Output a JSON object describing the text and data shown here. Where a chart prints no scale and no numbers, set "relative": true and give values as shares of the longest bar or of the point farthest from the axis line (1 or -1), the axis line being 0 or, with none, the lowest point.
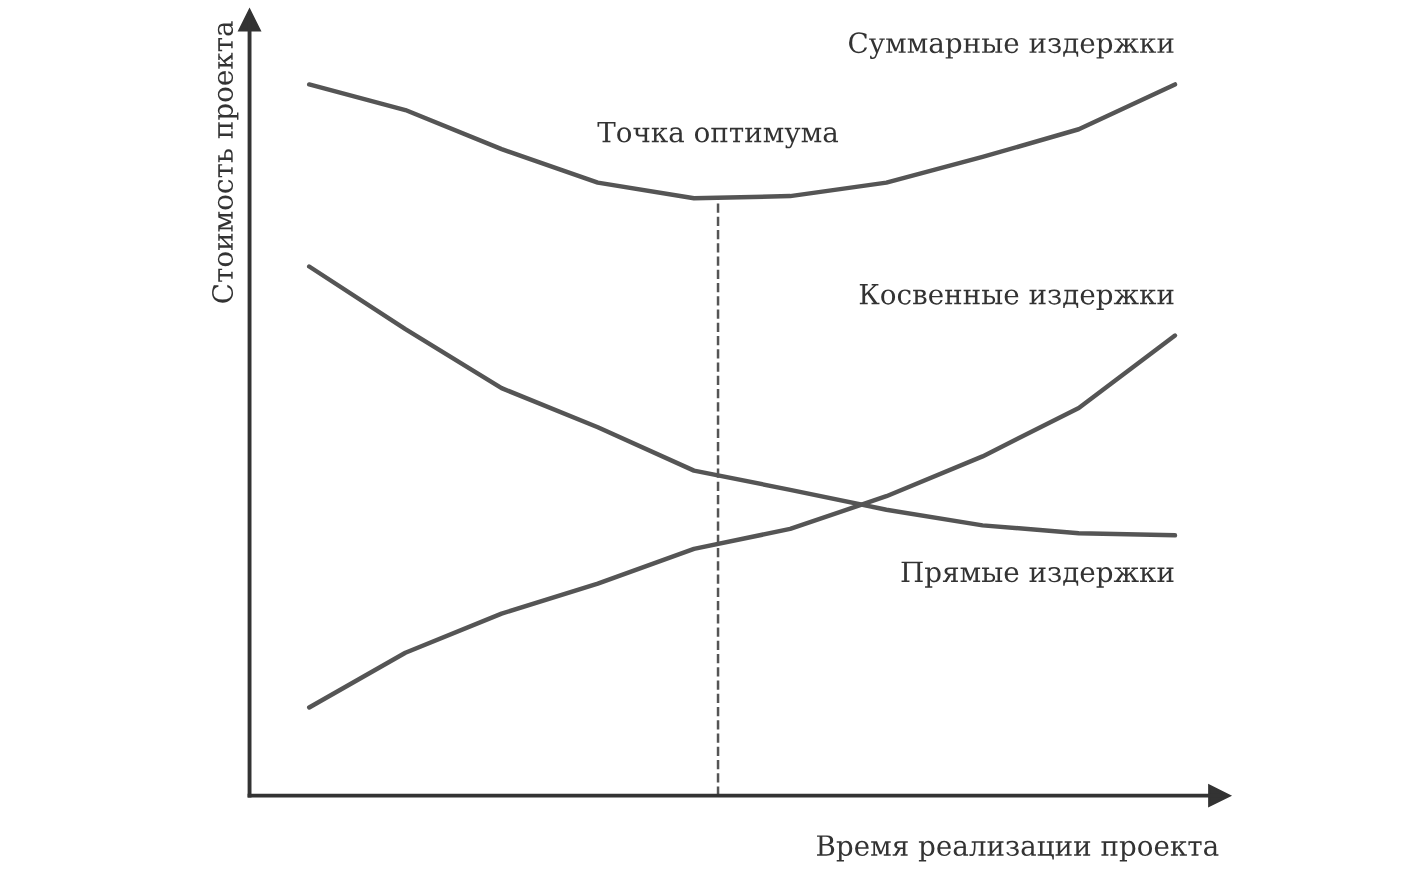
{
  "chart_data": {
    "type": "line",
    "relative": true,
    "xlabel": "Время реализации проекта",
    "ylabel": "Стоимость проекта",
    "categories": [
      null,
      null,
      null,
      null,
      null,
      null,
      null,
      null,
      null,
      null
    ],
    "series": [
      {
        "name": "Суммарные издержки",
        "color": "#555555",
        "values": [
          1.0,
          0.964,
          0.909,
          0.862,
          0.84,
          0.843,
          0.862,
          0.898,
          0.937,
          1.0
        ]
      },
      {
        "name": "Косвенные издержки",
        "color": "#555555",
        "values": [
          0.124,
          0.201,
          0.256,
          0.298,
          0.347,
          0.375,
          0.421,
          0.477,
          0.545,
          0.647
        ]
      },
      {
        "name": "Прямые издержки",
        "color": "#555555",
        "values": [
          0.744,
          0.656,
          0.573,
          0.518,
          0.457,
          0.43,
          0.402,
          0.38,
          0.369,
          0.366
        ]
      }
    ],
    "annotations": [
      "Точка оптимума"
    ],
    "legend": false,
    "marker": "none",
    "line_style": "solid"
  }
}
